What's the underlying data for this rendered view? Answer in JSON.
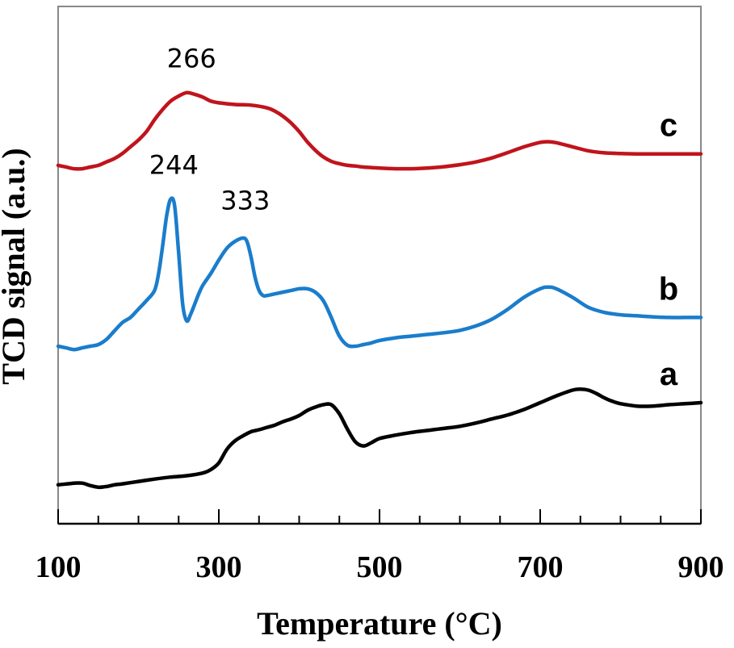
{
  "chart_data": {
    "type": "line",
    "xlabel": "Temperature (°C)",
    "ylabel": "TCD signal (a.u.)",
    "xlim": [
      100,
      900
    ],
    "x_ticks": [
      "100",
      "300",
      "500",
      "700",
      "900"
    ],
    "y_ticks_shown": false,
    "grid": false,
    "series": [
      {
        "name": "a",
        "color": "#000000",
        "x": [
          100,
          120,
          130,
          140,
          150,
          160,
          170,
          180,
          200,
          220,
          240,
          260,
          280,
          290,
          300,
          310,
          320,
          330,
          340,
          350,
          360,
          370,
          380,
          390,
          400,
          410,
          420,
          430,
          440,
          450,
          460,
          470,
          480,
          490,
          500,
          520,
          540,
          560,
          580,
          600,
          620,
          640,
          660,
          680,
          700,
          720,
          740,
          750,
          760,
          770,
          780,
          790,
          800,
          820,
          840,
          860,
          880,
          900
        ],
        "values": [
          1.15,
          1.2,
          1.2,
          1.13,
          1.08,
          1.1,
          1.15,
          1.18,
          1.25,
          1.32,
          1.38,
          1.42,
          1.5,
          1.6,
          1.8,
          2.2,
          2.45,
          2.6,
          2.72,
          2.78,
          2.85,
          2.92,
          3.02,
          3.1,
          3.2,
          3.35,
          3.45,
          3.52,
          3.52,
          3.25,
          2.8,
          2.42,
          2.3,
          2.4,
          2.52,
          2.62,
          2.7,
          2.76,
          2.82,
          2.88,
          2.98,
          3.1,
          3.22,
          3.38,
          3.58,
          3.78,
          3.95,
          3.98,
          3.95,
          3.85,
          3.72,
          3.62,
          3.55,
          3.48,
          3.48,
          3.52,
          3.55,
          3.58
        ]
      },
      {
        "name": "b",
        "color": "#1a7dcc",
        "x": [
          100,
          110,
          120,
          130,
          140,
          150,
          160,
          170,
          180,
          190,
          200,
          210,
          220,
          225,
          230,
          235,
          240,
          245,
          250,
          255,
          260,
          265,
          270,
          275,
          280,
          290,
          300,
          310,
          320,
          330,
          335,
          340,
          345,
          350,
          355,
          360,
          370,
          380,
          390,
          400,
          410,
          420,
          430,
          440,
          450,
          460,
          470,
          480,
          490,
          500,
          520,
          540,
          560,
          580,
          600,
          620,
          640,
          660,
          680,
          700,
          710,
          720,
          740,
          760,
          780,
          800,
          820,
          840,
          860,
          880,
          900
        ],
        "values": [
          5.25,
          5.2,
          5.15,
          5.2,
          5.25,
          5.3,
          5.45,
          5.7,
          5.95,
          6.1,
          6.35,
          6.6,
          6.9,
          7.4,
          8.2,
          9.1,
          9.6,
          9.4,
          8.0,
          6.5,
          6.0,
          6.2,
          6.5,
          6.8,
          7.05,
          7.4,
          7.8,
          8.15,
          8.35,
          8.45,
          8.35,
          7.9,
          7.3,
          6.9,
          6.75,
          6.75,
          6.8,
          6.85,
          6.9,
          6.95,
          6.95,
          6.85,
          6.6,
          6.1,
          5.55,
          5.28,
          5.25,
          5.3,
          5.35,
          5.42,
          5.5,
          5.55,
          5.6,
          5.65,
          5.72,
          5.85,
          6.05,
          6.35,
          6.7,
          6.95,
          7.0,
          6.95,
          6.7,
          6.4,
          6.25,
          6.18,
          6.15,
          6.12,
          6.1,
          6.1,
          6.1
        ]
      },
      {
        "name": "c",
        "color": "#c0141c",
        "x": [
          100,
          110,
          120,
          130,
          140,
          150,
          160,
          170,
          180,
          190,
          200,
          210,
          220,
          230,
          240,
          250,
          260,
          270,
          280,
          290,
          300,
          320,
          340,
          360,
          370,
          380,
          390,
          400,
          410,
          420,
          430,
          440,
          450,
          460,
          470,
          480,
          500,
          520,
          540,
          560,
          580,
          600,
          620,
          640,
          660,
          680,
          700,
          710,
          720,
          740,
          760,
          780,
          800,
          820,
          840,
          860,
          880,
          900
        ],
        "values": [
          10.6,
          10.55,
          10.5,
          10.5,
          10.55,
          10.6,
          10.7,
          10.8,
          10.95,
          11.15,
          11.35,
          11.6,
          11.95,
          12.25,
          12.5,
          12.65,
          12.75,
          12.7,
          12.62,
          12.5,
          12.45,
          12.4,
          12.38,
          12.3,
          12.2,
          12.05,
          11.85,
          11.6,
          11.3,
          11.05,
          10.85,
          10.72,
          10.65,
          10.6,
          10.58,
          10.55,
          10.52,
          10.5,
          10.5,
          10.52,
          10.56,
          10.62,
          10.7,
          10.82,
          10.98,
          11.15,
          11.28,
          11.3,
          11.27,
          11.15,
          11.03,
          10.97,
          10.95,
          10.94,
          10.94,
          10.94,
          10.94,
          10.94
        ]
      }
    ],
    "annotations": [
      {
        "text": "266",
        "x": 266,
        "y": 13.5
      },
      {
        "text": "244",
        "x": 244,
        "y": 10.35
      },
      {
        "text": "333",
        "x": 333,
        "y": 9.3
      }
    ]
  }
}
